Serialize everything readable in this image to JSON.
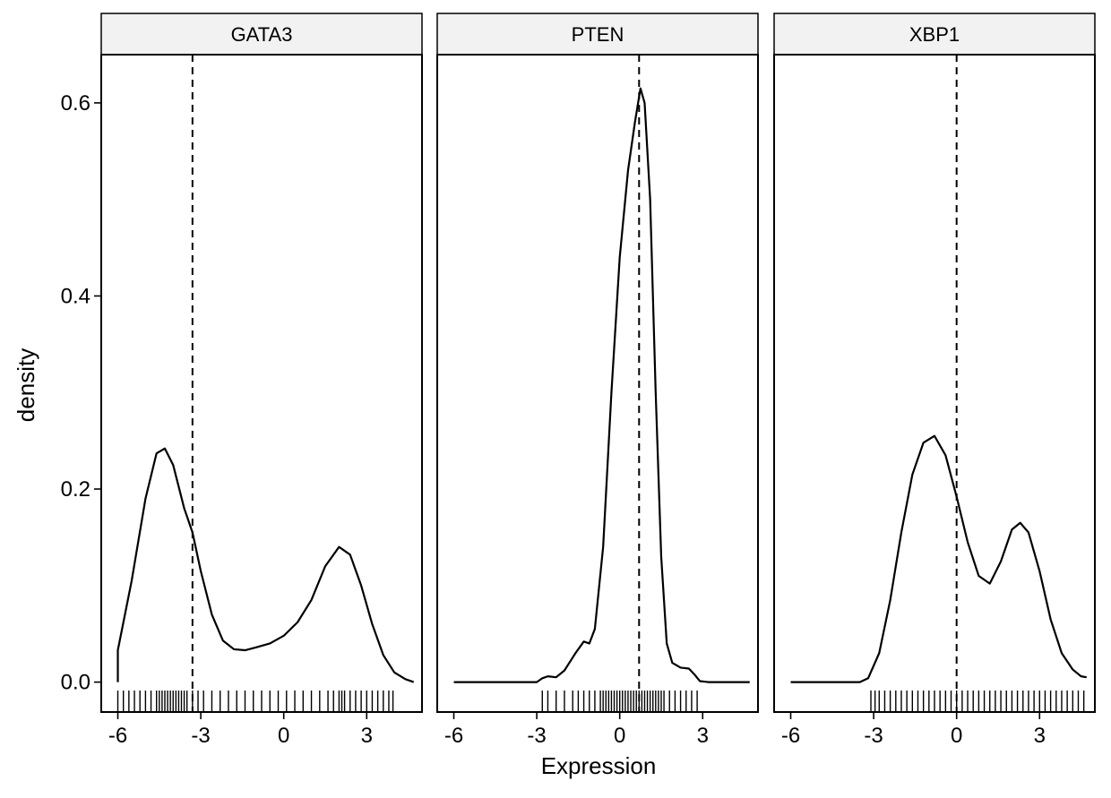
{
  "chart_data": {
    "type": "density-facets",
    "xlabel": "Expression",
    "ylabel": "density",
    "xlim": [
      -6.6,
      5.0
    ],
    "ylim": [
      -0.031,
      0.65
    ],
    "x_ticks": [
      {
        "value": -6,
        "label": "-6"
      },
      {
        "value": -3,
        "label": "-3"
      },
      {
        "value": 0,
        "label": "0"
      },
      {
        "value": 3,
        "label": "3"
      }
    ],
    "y_ticks": [
      {
        "value": 0.0,
        "label": "0.0"
      },
      {
        "value": 0.2,
        "label": "0.2"
      },
      {
        "value": 0.4,
        "label": "0.4"
      },
      {
        "value": 0.6,
        "label": "0.6"
      }
    ],
    "grid": false,
    "colors": {
      "line": "#000000",
      "strip_fill": "#f2f2f2",
      "panel_border": "#000000",
      "vline": "#000000"
    },
    "facets": [
      {
        "label": "GATA3",
        "vline": -3.3,
        "curve": [
          {
            "x": -6.0,
            "y": 0.0
          },
          {
            "x": -6.0,
            "y": 0.033
          },
          {
            "x": -5.5,
            "y": 0.105
          },
          {
            "x": -5.0,
            "y": 0.19
          },
          {
            "x": -4.6,
            "y": 0.237
          },
          {
            "x": -4.3,
            "y": 0.242
          },
          {
            "x": -4.0,
            "y": 0.225
          },
          {
            "x": -3.6,
            "y": 0.18
          },
          {
            "x": -3.3,
            "y": 0.155
          },
          {
            "x": -3.0,
            "y": 0.115
          },
          {
            "x": -2.6,
            "y": 0.07
          },
          {
            "x": -2.2,
            "y": 0.043
          },
          {
            "x": -1.8,
            "y": 0.034
          },
          {
            "x": -1.4,
            "y": 0.033
          },
          {
            "x": -1.0,
            "y": 0.036
          },
          {
            "x": -0.5,
            "y": 0.04
          },
          {
            "x": 0.0,
            "y": 0.048
          },
          {
            "x": 0.5,
            "y": 0.062
          },
          {
            "x": 1.0,
            "y": 0.085
          },
          {
            "x": 1.5,
            "y": 0.12
          },
          {
            "x": 2.0,
            "y": 0.14
          },
          {
            "x": 2.4,
            "y": 0.132
          },
          {
            "x": 2.8,
            "y": 0.1
          },
          {
            "x": 3.2,
            "y": 0.06
          },
          {
            "x": 3.6,
            "y": 0.028
          },
          {
            "x": 4.0,
            "y": 0.01
          },
          {
            "x": 4.4,
            "y": 0.003
          },
          {
            "x": 4.7,
            "y": 0.0
          }
        ],
        "rug": [
          -6.0,
          -5.8,
          -5.6,
          -5.4,
          -5.2,
          -5.0,
          -4.8,
          -4.6,
          -4.5,
          -4.4,
          -4.3,
          -4.2,
          -4.1,
          -4.0,
          -3.9,
          -3.8,
          -3.7,
          -3.6,
          -3.5,
          -3.3,
          -3.1,
          -2.9,
          -2.6,
          -2.3,
          -2.0,
          -1.7,
          -1.4,
          -1.1,
          -0.8,
          -0.5,
          -0.2,
          0.1,
          0.4,
          0.7,
          1.0,
          1.3,
          1.6,
          1.8,
          2.0,
          2.1,
          2.2,
          2.4,
          2.6,
          2.8,
          3.0,
          3.2,
          3.4,
          3.6,
          3.8,
          3.95
        ]
      },
      {
        "label": "PTEN",
        "vline": 0.7,
        "curve": [
          {
            "x": -6.0,
            "y": 0.0
          },
          {
            "x": -3.0,
            "y": 0.0
          },
          {
            "x": -2.8,
            "y": 0.004
          },
          {
            "x": -2.6,
            "y": 0.006
          },
          {
            "x": -2.3,
            "y": 0.005
          },
          {
            "x": -2.0,
            "y": 0.012
          },
          {
            "x": -1.6,
            "y": 0.03
          },
          {
            "x": -1.3,
            "y": 0.042
          },
          {
            "x": -1.1,
            "y": 0.04
          },
          {
            "x": -0.9,
            "y": 0.055
          },
          {
            "x": -0.6,
            "y": 0.14
          },
          {
            "x": -0.3,
            "y": 0.3
          },
          {
            "x": 0.0,
            "y": 0.44
          },
          {
            "x": 0.3,
            "y": 0.53
          },
          {
            "x": 0.55,
            "y": 0.58
          },
          {
            "x": 0.75,
            "y": 0.615
          },
          {
            "x": 0.9,
            "y": 0.6
          },
          {
            "x": 1.1,
            "y": 0.5
          },
          {
            "x": 1.3,
            "y": 0.3
          },
          {
            "x": 1.5,
            "y": 0.13
          },
          {
            "x": 1.7,
            "y": 0.04
          },
          {
            "x": 1.9,
            "y": 0.02
          },
          {
            "x": 2.2,
            "y": 0.015
          },
          {
            "x": 2.5,
            "y": 0.014
          },
          {
            "x": 2.7,
            "y": 0.008
          },
          {
            "x": 2.9,
            "y": 0.001
          },
          {
            "x": 3.2,
            "y": 0.0
          },
          {
            "x": 4.7,
            "y": 0.0
          }
        ],
        "rug": [
          -2.8,
          -2.6,
          -2.3,
          -2.0,
          -1.7,
          -1.5,
          -1.3,
          -1.1,
          -0.9,
          -0.7,
          -0.6,
          -0.5,
          -0.4,
          -0.3,
          -0.2,
          -0.1,
          0.0,
          0.1,
          0.2,
          0.3,
          0.4,
          0.5,
          0.6,
          0.7,
          0.8,
          0.9,
          1.0,
          1.1,
          1.2,
          1.3,
          1.4,
          1.5,
          1.6,
          1.8,
          2.0,
          2.2,
          2.4,
          2.6,
          2.8
        ]
      },
      {
        "label": "XBP1",
        "vline": 0.0,
        "curve": [
          {
            "x": -6.0,
            "y": 0.0
          },
          {
            "x": -3.5,
            "y": 0.0
          },
          {
            "x": -3.2,
            "y": 0.004
          },
          {
            "x": -2.8,
            "y": 0.03
          },
          {
            "x": -2.4,
            "y": 0.085
          },
          {
            "x": -2.0,
            "y": 0.155
          },
          {
            "x": -1.6,
            "y": 0.215
          },
          {
            "x": -1.2,
            "y": 0.248
          },
          {
            "x": -0.8,
            "y": 0.255
          },
          {
            "x": -0.4,
            "y": 0.235
          },
          {
            "x": 0.0,
            "y": 0.192
          },
          {
            "x": 0.4,
            "y": 0.145
          },
          {
            "x": 0.8,
            "y": 0.11
          },
          {
            "x": 1.2,
            "y": 0.102
          },
          {
            "x": 1.6,
            "y": 0.125
          },
          {
            "x": 2.0,
            "y": 0.158
          },
          {
            "x": 2.3,
            "y": 0.165
          },
          {
            "x": 2.6,
            "y": 0.155
          },
          {
            "x": 3.0,
            "y": 0.115
          },
          {
            "x": 3.4,
            "y": 0.065
          },
          {
            "x": 3.8,
            "y": 0.03
          },
          {
            "x": 4.2,
            "y": 0.013
          },
          {
            "x": 4.5,
            "y": 0.006
          },
          {
            "x": 4.7,
            "y": 0.005
          }
        ],
        "rug": [
          -3.1,
          -2.95,
          -2.8,
          -2.6,
          -2.4,
          -2.2,
          -2.0,
          -1.8,
          -1.6,
          -1.4,
          -1.2,
          -1.0,
          -0.8,
          -0.6,
          -0.4,
          -0.2,
          0.0,
          0.2,
          0.4,
          0.6,
          0.8,
          1.0,
          1.2,
          1.4,
          1.6,
          1.8,
          2.0,
          2.2,
          2.4,
          2.6,
          2.8,
          3.0,
          3.2,
          3.4,
          3.6,
          3.8,
          4.0,
          4.2,
          4.4,
          4.6
        ]
      }
    ]
  }
}
